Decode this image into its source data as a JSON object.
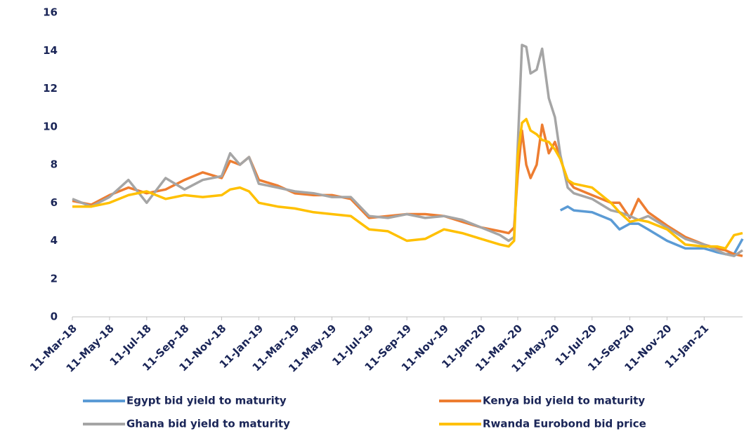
{
  "chart_data": {
    "type": "line",
    "x": [
      "2018-03-11",
      "2018-04-11",
      "2018-05-11",
      "2018-06-11",
      "2018-07-11",
      "2018-08-11",
      "2018-09-11",
      "2018-10-11",
      "2018-11-11",
      "2018-11-25",
      "2018-12-11",
      "2018-12-26",
      "2019-01-11",
      "2019-02-11",
      "2019-03-11",
      "2019-04-11",
      "2019-05-11",
      "2019-06-11",
      "2019-07-11",
      "2019-08-11",
      "2019-09-11",
      "2019-10-11",
      "2019-11-11",
      "2019-12-11",
      "2020-01-11",
      "2020-02-11",
      "2020-02-25",
      "2020-03-05",
      "2020-03-11",
      "2020-03-18",
      "2020-03-25",
      "2020-04-01",
      "2020-04-11",
      "2020-04-20",
      "2020-05-01",
      "2020-05-11",
      "2020-05-20",
      "2020-06-01",
      "2020-06-11",
      "2020-07-11",
      "2020-08-11",
      "2020-08-25",
      "2020-09-11",
      "2020-09-25",
      "2020-10-11",
      "2020-11-11",
      "2020-12-11",
      "2021-01-11",
      "2021-02-01",
      "2021-02-15",
      "2021-03-01",
      "2021-03-15"
    ],
    "series": [
      {
        "name": "Egypt bid yield to maturity",
        "color": "#5b9bd5",
        "values": [
          null,
          null,
          null,
          null,
          null,
          null,
          null,
          null,
          null,
          null,
          null,
          null,
          null,
          null,
          null,
          null,
          null,
          null,
          null,
          null,
          null,
          null,
          null,
          null,
          null,
          null,
          null,
          null,
          null,
          null,
          null,
          null,
          null,
          null,
          null,
          null,
          5.6,
          5.8,
          5.6,
          5.5,
          5.1,
          4.6,
          4.9,
          4.9,
          4.6,
          4.0,
          3.6,
          3.6,
          3.4,
          3.3,
          3.3,
          4.1
        ]
      },
      {
        "name": "Kenya bid yield to maturity",
        "color": "#ed7d31",
        "values": [
          6.1,
          5.9,
          6.4,
          6.8,
          6.5,
          6.7,
          7.2,
          7.6,
          7.3,
          8.2,
          8.0,
          8.4,
          7.2,
          6.9,
          6.5,
          6.4,
          6.4,
          6.2,
          5.2,
          5.3,
          5.4,
          5.4,
          5.3,
          5.0,
          4.7,
          4.5,
          4.4,
          4.7,
          7.5,
          9.8,
          8.0,
          7.3,
          8.0,
          10.1,
          8.6,
          9.2,
          8.3,
          7.2,
          6.8,
          6.4,
          6.0,
          6.0,
          5.2,
          6.2,
          5.5,
          4.8,
          4.2,
          3.8,
          3.6,
          3.5,
          3.3,
          3.2
        ]
      },
      {
        "name": "Ghana bid yield to maturity",
        "color": "#a5a5a5",
        "values": [
          6.2,
          5.8,
          6.3,
          7.2,
          6.0,
          7.3,
          6.7,
          7.2,
          7.4,
          8.6,
          8.0,
          8.4,
          7.0,
          6.8,
          6.6,
          6.5,
          6.3,
          6.3,
          5.3,
          5.2,
          5.4,
          5.2,
          5.3,
          5.1,
          4.7,
          4.3,
          4.0,
          4.2,
          9.0,
          14.3,
          14.2,
          12.8,
          13.0,
          14.1,
          11.5,
          10.5,
          8.5,
          6.8,
          6.5,
          6.2,
          5.6,
          5.5,
          5.3,
          5.1,
          5.3,
          4.7,
          4.1,
          3.8,
          3.5,
          3.3,
          3.2,
          3.5
        ]
      },
      {
        "name": "Rwanda Eurobond bid price",
        "color": "#ffc000",
        "values": [
          5.8,
          5.8,
          6.0,
          6.4,
          6.6,
          6.2,
          6.4,
          6.3,
          6.4,
          6.7,
          6.8,
          6.6,
          6.0,
          5.8,
          5.7,
          5.5,
          5.4,
          5.3,
          4.6,
          4.5,
          4.0,
          4.1,
          4.6,
          4.4,
          4.1,
          3.8,
          3.7,
          4.0,
          8.5,
          10.2,
          10.4,
          9.8,
          9.6,
          9.3,
          9.2,
          8.8,
          8.3,
          7.2,
          7.0,
          6.8,
          6.0,
          5.5,
          5.0,
          5.1,
          5.0,
          4.6,
          3.8,
          3.7,
          3.7,
          3.6,
          4.3,
          4.4
        ]
      }
    ],
    "xlim": [
      "2018-03-11",
      "2021-03-15"
    ],
    "xticks": [
      {
        "value": "2018-03-11",
        "label": "11-Mar-18"
      },
      {
        "value": "2018-05-11",
        "label": "11-May-18"
      },
      {
        "value": "2018-07-11",
        "label": "11-Jul-18"
      },
      {
        "value": "2018-09-11",
        "label": "11-Sep-18"
      },
      {
        "value": "2018-11-11",
        "label": "11-Nov-18"
      },
      {
        "value": "2019-01-11",
        "label": "11-Jan-19"
      },
      {
        "value": "2019-03-11",
        "label": "11-Mar-19"
      },
      {
        "value": "2019-05-11",
        "label": "11-May-19"
      },
      {
        "value": "2019-07-11",
        "label": "11-Jul-19"
      },
      {
        "value": "2019-09-11",
        "label": "11-Sep-19"
      },
      {
        "value": "2019-11-11",
        "label": "11-Nov-19"
      },
      {
        "value": "2020-01-11",
        "label": "11-Jan-20"
      },
      {
        "value": "2020-03-11",
        "label": "11-Mar-20"
      },
      {
        "value": "2020-05-11",
        "label": "11-May-20"
      },
      {
        "value": "2020-07-11",
        "label": "11-Jul-20"
      },
      {
        "value": "2020-09-11",
        "label": "11-Sep-20"
      },
      {
        "value": "2020-11-11",
        "label": "11-Nov-20"
      },
      {
        "value": "2021-01-11",
        "label": "11-Jan-21"
      }
    ],
    "ylim": [
      0,
      16
    ],
    "yticks": [
      0,
      2,
      4,
      6,
      8,
      10,
      12,
      14,
      16
    ],
    "grid": false,
    "legend": "bottom"
  }
}
